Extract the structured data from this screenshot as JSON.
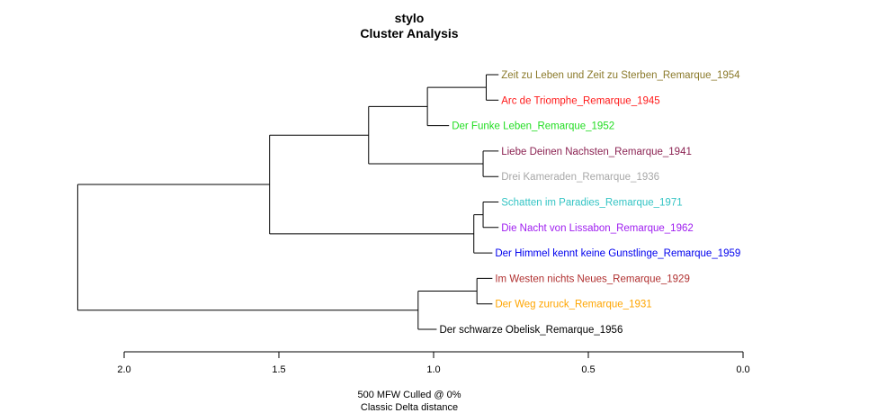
{
  "chart_data": {
    "type": "dendrogram",
    "title": "stylo",
    "subtitle": "Cluster Analysis",
    "axis": {
      "ticks": [
        2.0,
        1.5,
        1.0,
        0.5,
        0.0
      ],
      "tick_labels": [
        "2.0",
        "1.5",
        "1.0",
        "0.5",
        "0.0"
      ],
      "range": [
        2.0,
        0.0
      ]
    },
    "footnotes": [
      "500 MFW  Culled @ 0%",
      "Classic Delta distance"
    ],
    "leaves": [
      {
        "label": "Zeit zu Leben und Zeit zu Sterben_Remarque_1954",
        "color": "#8b7a2b"
      },
      {
        "label": "Arc de Triomphe_Remarque_1945",
        "color": "#ff1a1a"
      },
      {
        "label": "Der Funke Leben_Remarque_1952",
        "color": "#22dd22"
      },
      {
        "label": "Liebe Deinen Nachsten_Remarque_1941",
        "color": "#8b2252"
      },
      {
        "label": "Drei Kameraden_Remarque_1936",
        "color": "#a8a8a8"
      },
      {
        "label": "Schatten im Paradies_Remarque_1971",
        "color": "#33c4c4"
      },
      {
        "label": "Die Nacht von Lissabon_Remarque_1962",
        "color": "#a020f0"
      },
      {
        "label": "Der Himmel kennt keine Gunstlinge_Remarque_1959",
        "color": "#0000ee"
      },
      {
        "label": "Im Westen nichts Neues_Remarque_1929",
        "color": "#b03030"
      },
      {
        "label": "Der Weg zuruck_Remarque_1931",
        "color": "#ffa500"
      },
      {
        "label": "Der schwarze Obelisk_Remarque_1956",
        "color": "#000000"
      }
    ],
    "merges": [
      {
        "id": "m1",
        "children": [
          "L0",
          "L1"
        ],
        "height": 0.83
      },
      {
        "id": "m2",
        "children": [
          "m1",
          "L2"
        ],
        "height": 1.02
      },
      {
        "id": "m3",
        "children": [
          "L3",
          "L4"
        ],
        "height": 0.84
      },
      {
        "id": "m4",
        "children": [
          "m2",
          "m3"
        ],
        "height": 1.21
      },
      {
        "id": "m5",
        "children": [
          "L5",
          "L6"
        ],
        "height": 0.84
      },
      {
        "id": "m6",
        "children": [
          "m5",
          "L7"
        ],
        "height": 0.87
      },
      {
        "id": "m7",
        "children": [
          "m4",
          "m6"
        ],
        "height": 1.53
      },
      {
        "id": "m8",
        "children": [
          "L8",
          "L9"
        ],
        "height": 0.86
      },
      {
        "id": "m9",
        "children": [
          "m8",
          "L10"
        ],
        "height": 1.05
      },
      {
        "id": "m10",
        "children": [
          "m7",
          "m9"
        ],
        "height": 2.15
      }
    ],
    "leaf_heights": [
      0.79,
      0.79,
      0.95,
      0.79,
      0.79,
      0.79,
      0.79,
      0.81,
      0.81,
      0.81,
      0.99
    ]
  }
}
